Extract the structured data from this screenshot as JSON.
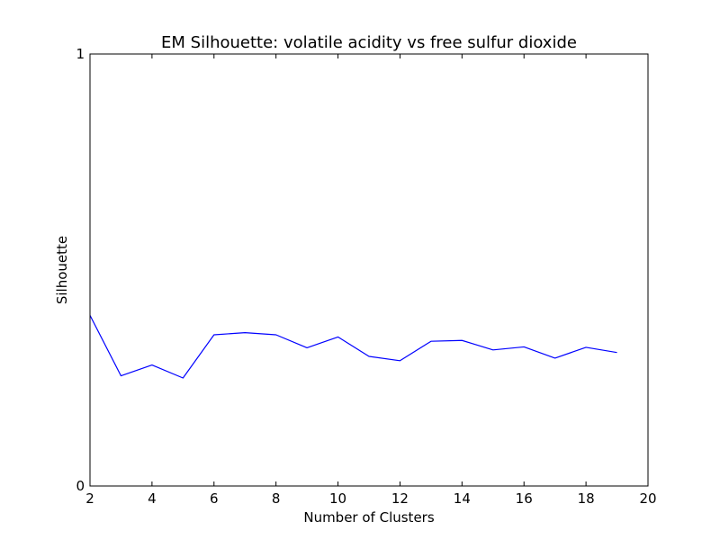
{
  "chart_data": {
    "type": "line",
    "title": "EM Silhouette: volatile acidity vs free sulfur dioxide",
    "xlabel": "Number of Clusters",
    "ylabel": "Silhouette",
    "xlim": [
      2,
      20
    ],
    "ylim": [
      0,
      1
    ],
    "xticks": [
      "2",
      "4",
      "6",
      "8",
      "10",
      "12",
      "14",
      "16",
      "18",
      "20"
    ],
    "yticks": [
      "0",
      "1"
    ],
    "grid": false,
    "legend": "none",
    "line_color": "#0000ff",
    "series": [
      {
        "x": [
          2,
          3,
          4,
          5,
          6,
          7,
          8,
          9,
          10,
          11,
          12,
          13,
          14,
          15,
          16,
          17,
          18,
          19
        ],
        "values": [
          0.395,
          0.255,
          0.28,
          0.25,
          0.35,
          0.355,
          0.35,
          0.32,
          0.345,
          0.3,
          0.29,
          0.335,
          0.337,
          0.315,
          0.322,
          0.296,
          0.321,
          0.309
        ]
      }
    ]
  }
}
